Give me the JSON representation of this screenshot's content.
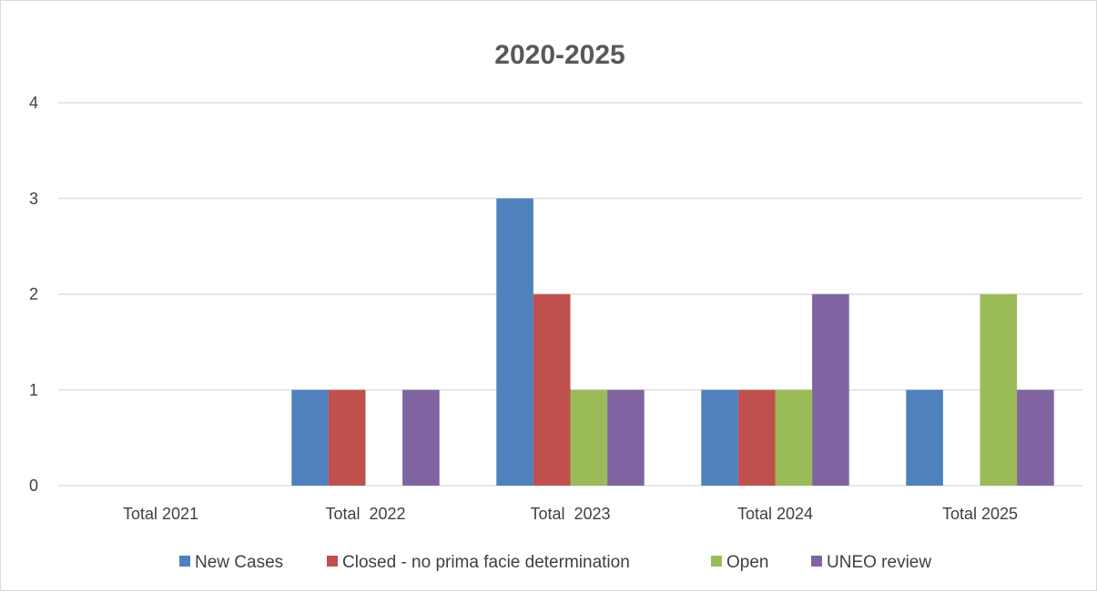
{
  "chart_data": {
    "type": "bar",
    "title": "2020-2025",
    "xlabel": "",
    "ylabel": "",
    "categories": [
      "Total 2021",
      "Total  2022",
      "Total  2023",
      "Total 2024",
      "Total 2025"
    ],
    "series": [
      {
        "name": "New Cases",
        "color": "#4f81bd",
        "values": [
          0,
          1,
          3,
          1,
          1
        ]
      },
      {
        "name": "Closed - no prima facie determination",
        "color": "#c0504d",
        "values": [
          0,
          1,
          2,
          1,
          0
        ]
      },
      {
        "name": "Open",
        "color": "#9bbb59",
        "values": [
          0,
          0,
          1,
          1,
          2
        ]
      },
      {
        "name": "UNEO review",
        "color": "#8064a2",
        "values": [
          0,
          1,
          1,
          2,
          1
        ]
      }
    ],
    "ylim": [
      0,
      4
    ],
    "yticks": [
      0,
      1,
      2,
      3,
      4
    ],
    "grid": true,
    "legend": "bottom"
  }
}
